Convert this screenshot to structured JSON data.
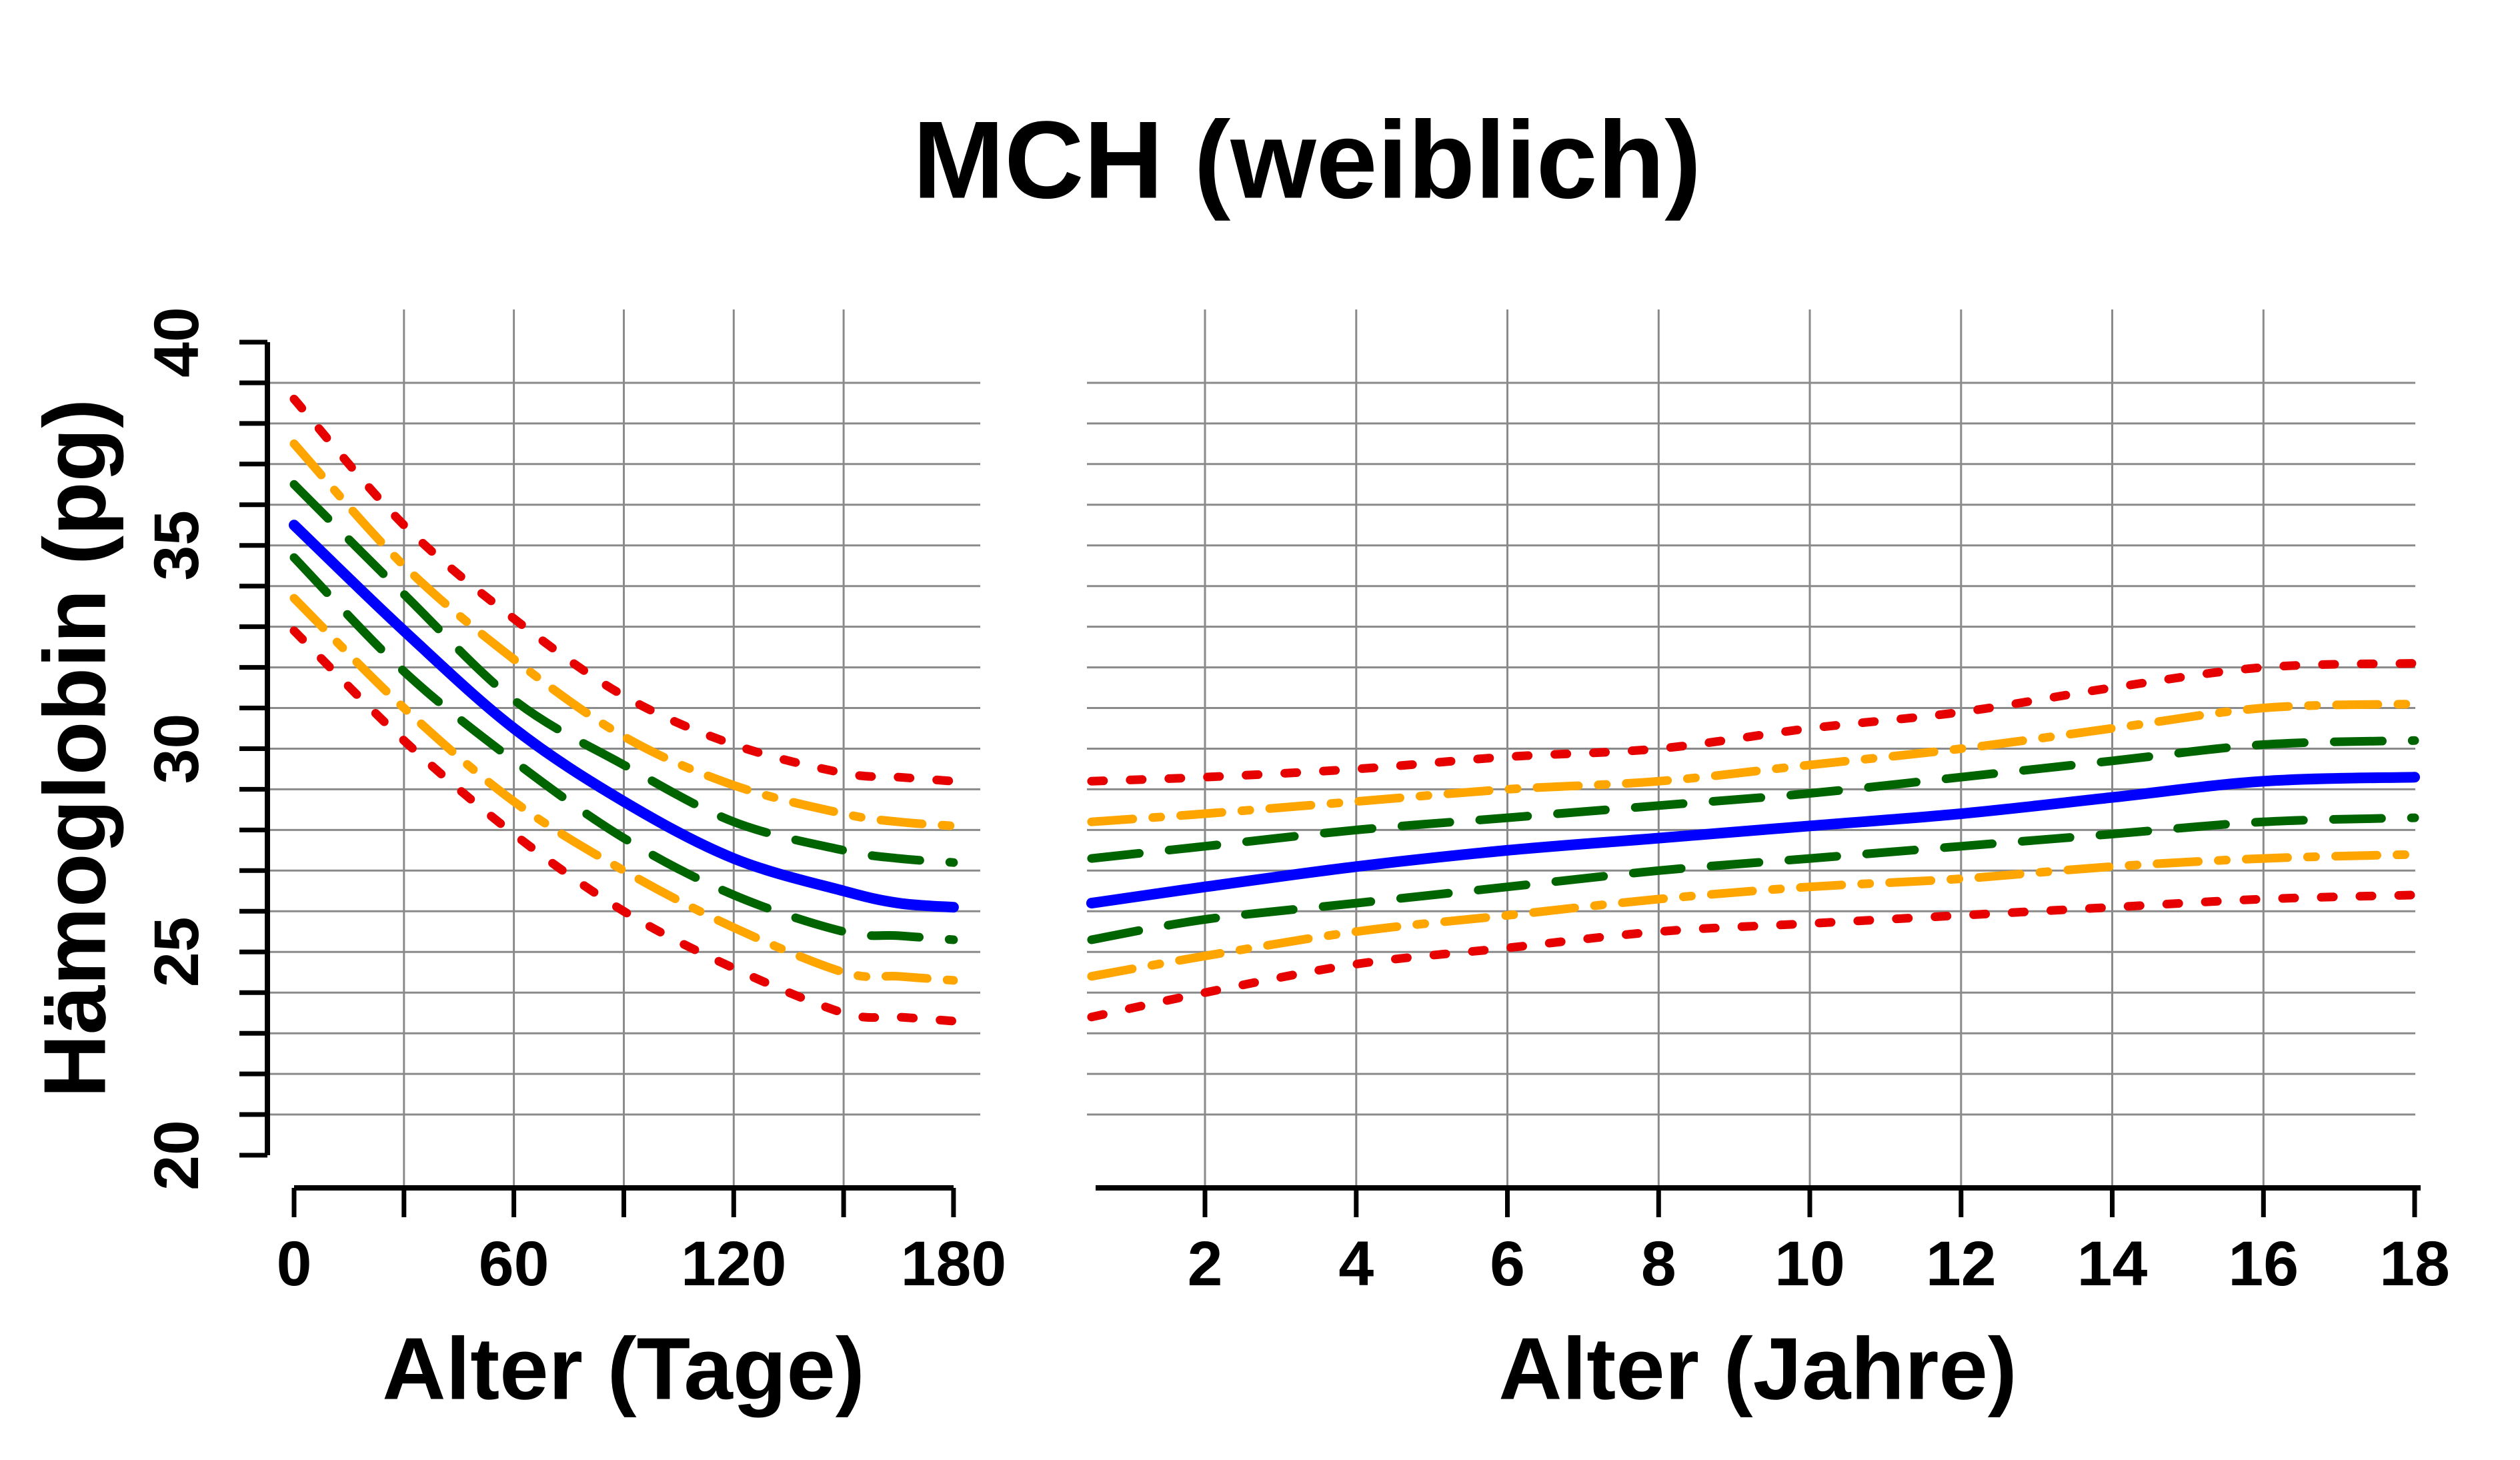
{
  "chart_data": {
    "type": "line",
    "title": "MCH (weiblich)",
    "ylabel": "Hämoglobin (pg)",
    "ylim": [
      20,
      40
    ],
    "y_ticks_labeled": [
      20,
      25,
      30,
      35,
      40
    ],
    "y_minor_tick_step": 1,
    "grid": true,
    "legend_position": "none",
    "colors": {
      "outer_band": "#e60000",
      "mid_band": "#ffa500",
      "inner_band": "#006400",
      "median": "#0000ff",
      "gridline": "#8a8a8a",
      "axis": "#000000"
    },
    "series_styles": [
      {
        "id": "p_hi_outer",
        "color": "#e60000",
        "dash": "dotted",
        "width": 13
      },
      {
        "id": "p_hi_mid",
        "color": "#ffa500",
        "dash": "dashdot",
        "width": 13
      },
      {
        "id": "p_hi_inner",
        "color": "#006400",
        "dash": "dashed",
        "width": 13
      },
      {
        "id": "median",
        "color": "#0000ff",
        "dash": "solid",
        "width": 16
      },
      {
        "id": "p_lo_inner",
        "color": "#006400",
        "dash": "dashed",
        "width": 13
      },
      {
        "id": "p_lo_mid",
        "color": "#ffa500",
        "dash": "dashdot",
        "width": 13
      },
      {
        "id": "p_lo_outer",
        "color": "#e60000",
        "dash": "dotted",
        "width": 13
      }
    ],
    "panels": [
      {
        "xlabel": "Alter (Tage)",
        "x_unit": "days",
        "xlim": [
          0,
          180
        ],
        "x_ticks": [
          0,
          30,
          60,
          90,
          120,
          150,
          180
        ],
        "x_tick_labels": [
          "0",
          "",
          "60",
          "",
          "120",
          "",
          "180"
        ],
        "gridlines_x": [
          30,
          60,
          90,
          120,
          150
        ],
        "x": [
          0,
          30,
          60,
          90,
          120,
          150,
          165,
          180
        ],
        "series": [
          {
            "id": "p_hi_outer",
            "y": [
              38.6,
              35.5,
              33.2,
              31.3,
              30.1,
              29.4,
              29.3,
              29.2
            ]
          },
          {
            "id": "p_hi_mid",
            "y": [
              37.5,
              34.5,
              32.2,
              30.3,
              29.1,
              28.4,
              28.2,
              28.1
            ]
          },
          {
            "id": "p_hi_inner",
            "y": [
              36.5,
              33.8,
              31.2,
              29.6,
              28.2,
              27.5,
              27.3,
              27.2
            ]
          },
          {
            "id": "median",
            "y": [
              35.5,
              32.9,
              30.5,
              28.7,
              27.3,
              26.5,
              26.2,
              26.1
            ]
          },
          {
            "id": "p_lo_inner",
            "y": [
              34.7,
              31.9,
              29.7,
              27.8,
              26.4,
              25.5,
              25.4,
              25.3
            ]
          },
          {
            "id": "p_lo_mid",
            "y": [
              33.7,
              31.0,
              28.7,
              27.0,
              25.6,
              24.5,
              24.4,
              24.3
            ]
          },
          {
            "id": "p_lo_outer",
            "y": [
              32.9,
              30.2,
              27.9,
              26.0,
              24.6,
              23.5,
              23.4,
              23.3
            ]
          }
        ]
      },
      {
        "xlabel": "Alter (Jahre)",
        "x_unit": "years",
        "xlim": [
          0.5,
          18
        ],
        "x_ticks": [
          2,
          4,
          6,
          8,
          10,
          12,
          14,
          16,
          18
        ],
        "x_tick_labels": [
          "2",
          "4",
          "6",
          "8",
          "10",
          "12",
          "14",
          "16",
          "18"
        ],
        "gridlines_x": [
          2,
          4,
          6,
          8,
          10,
          12,
          14,
          16
        ],
        "x": [
          0.5,
          2,
          4,
          6,
          8,
          10,
          12,
          14,
          16,
          18
        ],
        "series": [
          {
            "id": "p_hi_outer",
            "y": [
              29.2,
              29.3,
              29.5,
              29.8,
              30.0,
              30.5,
              30.9,
              31.5,
              32.0,
              32.1
            ]
          },
          {
            "id": "p_hi_mid",
            "y": [
              28.2,
              28.4,
              28.7,
              29.0,
              29.2,
              29.6,
              30.0,
              30.5,
              31.0,
              31.1
            ]
          },
          {
            "id": "p_hi_inner",
            "y": [
              27.3,
              27.6,
              28.0,
              28.3,
              28.6,
              28.9,
              29.3,
              29.7,
              30.1,
              30.2
            ]
          },
          {
            "id": "median",
            "y": [
              26.2,
              26.6,
              27.1,
              27.5,
              27.8,
              28.1,
              28.4,
              28.8,
              29.2,
              29.3
            ]
          },
          {
            "id": "p_lo_inner",
            "y": [
              25.3,
              25.8,
              26.2,
              26.6,
              27.0,
              27.3,
              27.6,
              27.9,
              28.2,
              28.3
            ]
          },
          {
            "id": "p_lo_mid",
            "y": [
              24.4,
              24.9,
              25.5,
              25.9,
              26.3,
              26.6,
              26.8,
              27.1,
              27.3,
              27.4
            ]
          },
          {
            "id": "p_lo_outer",
            "y": [
              23.4,
              24.0,
              24.7,
              25.1,
              25.5,
              25.7,
              25.9,
              26.1,
              26.3,
              26.4
            ]
          }
        ]
      }
    ]
  }
}
